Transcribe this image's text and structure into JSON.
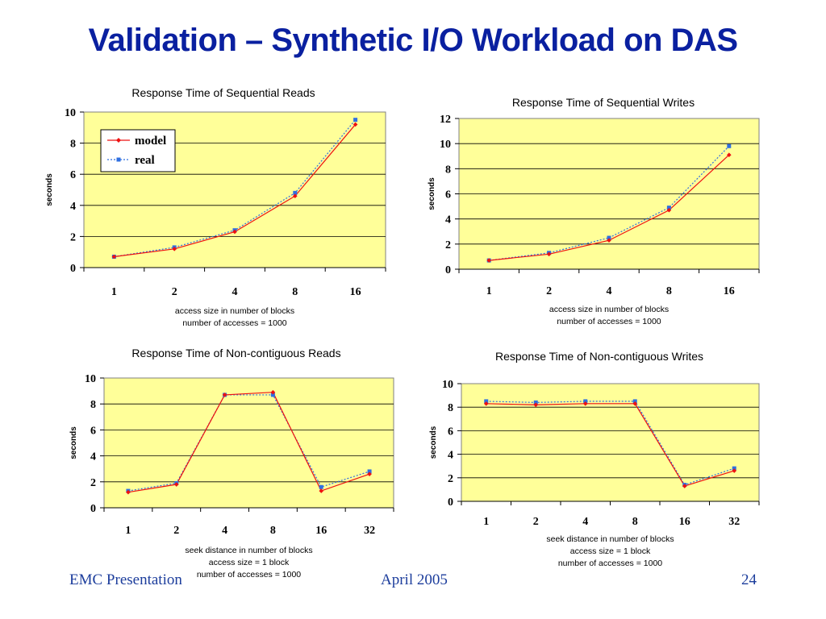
{
  "slide": {
    "title": "Validation – Synthetic I/O Workload on DAS",
    "footer_left": "EMC Presentation",
    "footer_center": "April 2005",
    "footer_right": "24"
  },
  "colors": {
    "plot_bg": "#ffff99",
    "model": "#ee1111",
    "real": "#2f6fe0",
    "title": "#0a20a0"
  },
  "chart_data": [
    {
      "type": "line",
      "title": "Response Time of Sequential Reads",
      "ylabel": "seconds",
      "xlabel_lines": [
        "access size in number of blocks",
        "number of accesses = 1000"
      ],
      "categories": [
        "1",
        "2",
        "4",
        "8",
        "16"
      ],
      "ylim": [
        0,
        10
      ],
      "yticks": [
        0,
        2,
        4,
        6,
        8,
        10
      ],
      "grid": true,
      "legend": "top-left",
      "series": [
        {
          "name": "model",
          "values": [
            0.7,
            1.2,
            2.3,
            4.6,
            9.2
          ]
        },
        {
          "name": "real",
          "values": [
            0.7,
            1.3,
            2.4,
            4.8,
            9.5
          ]
        }
      ]
    },
    {
      "type": "line",
      "title": "Response Time of Sequential Writes",
      "ylabel": "seconds",
      "xlabel_lines": [
        "access size in number of blocks",
        "number of accesses = 1000"
      ],
      "categories": [
        "1",
        "2",
        "4",
        "8",
        "16"
      ],
      "ylim": [
        0,
        12
      ],
      "yticks": [
        0,
        2,
        4,
        6,
        8,
        10,
        12
      ],
      "grid": true,
      "series": [
        {
          "name": "model",
          "values": [
            0.7,
            1.2,
            2.3,
            4.7,
            9.1
          ]
        },
        {
          "name": "real",
          "values": [
            0.7,
            1.3,
            2.5,
            4.9,
            9.8
          ]
        }
      ]
    },
    {
      "type": "line",
      "title": "Response Time of Non-contiguous Reads",
      "ylabel": "seconds",
      "xlabel_lines": [
        "seek distance in number of blocks",
        "access size = 1 block",
        "number of accesses = 1000"
      ],
      "categories": [
        "1",
        "2",
        "4",
        "8",
        "16",
        "32"
      ],
      "ylim": [
        0,
        10
      ],
      "yticks": [
        0,
        2,
        4,
        6,
        8,
        10
      ],
      "grid": true,
      "series": [
        {
          "name": "model",
          "values": [
            1.2,
            1.8,
            8.7,
            8.9,
            1.3,
            2.6
          ]
        },
        {
          "name": "real",
          "values": [
            1.3,
            1.9,
            8.7,
            8.7,
            1.6,
            2.8
          ]
        }
      ]
    },
    {
      "type": "line",
      "title": "Response Time of Non-contiguous Writes",
      "ylabel": "seconds",
      "xlabel_lines": [
        "seek distance in number of blocks",
        "access size = 1 block",
        "number of accesses = 1000"
      ],
      "categories": [
        "1",
        "2",
        "4",
        "8",
        "16",
        "32"
      ],
      "ylim": [
        0,
        10
      ],
      "yticks": [
        0,
        2,
        4,
        6,
        8,
        10
      ],
      "grid": true,
      "series": [
        {
          "name": "model",
          "values": [
            8.3,
            8.2,
            8.3,
            8.3,
            1.3,
            2.6
          ]
        },
        {
          "name": "real",
          "values": [
            8.5,
            8.4,
            8.5,
            8.5,
            1.4,
            2.8
          ]
        }
      ]
    }
  ]
}
